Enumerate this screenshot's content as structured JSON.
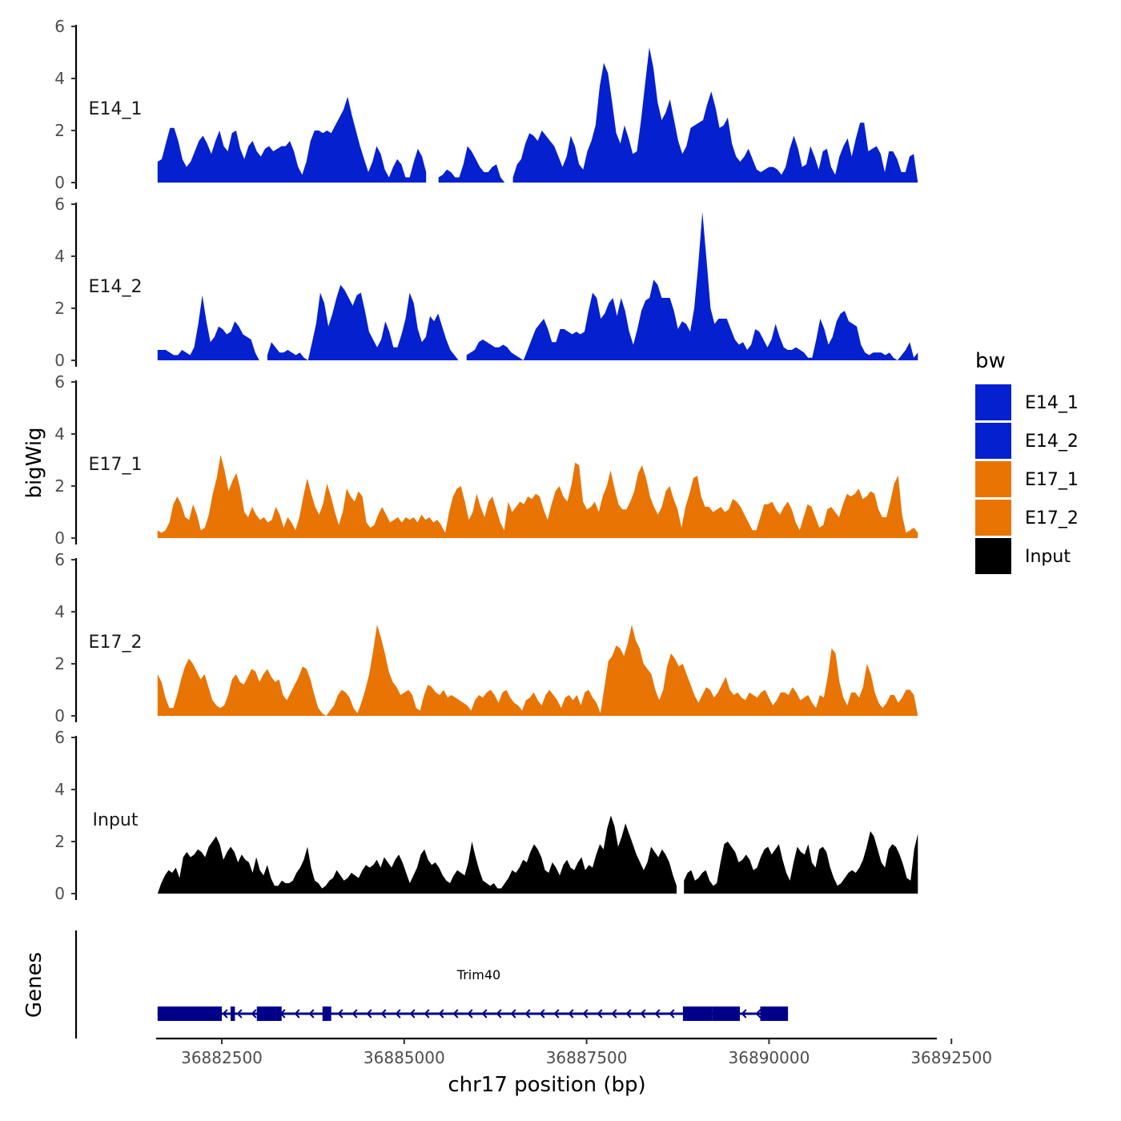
{
  "chart_data": {
    "type": "area",
    "ylabel": "bigWig",
    "xlabel": "chr17 position (bp)",
    "genes_label": "Genes",
    "ylim": [
      0,
      6
    ],
    "yticks": [
      "0",
      "2",
      "4",
      "6"
    ],
    "xlim": [
      36881600,
      36892300
    ],
    "xticks": [
      {
        "value": 36882500,
        "label": "36882500"
      },
      {
        "value": 36885000,
        "label": "36885000"
      },
      {
        "value": 36887500,
        "label": "36887500"
      },
      {
        "value": 36890000,
        "label": "36890000"
      },
      {
        "value": 36892500,
        "label": "36892500"
      }
    ],
    "data_range": [
      36881620,
      36892040
    ],
    "legend": {
      "title": "bw",
      "items": [
        {
          "label": "E14_1",
          "color": "#0420CF"
        },
        {
          "label": "E14_2",
          "color": "#0420CF"
        },
        {
          "label": "E17_1",
          "color": "#E87404"
        },
        {
          "label": "E17_2",
          "color": "#E87404"
        },
        {
          "label": "Input",
          "color": "#000000"
        }
      ]
    },
    "series": [
      {
        "name": "E14_1",
        "color": "#0420CF",
        "values": [
          0.8,
          0.9,
          1.5,
          2.1,
          2.1,
          1.6,
          0.9,
          0.6,
          0.8,
          1.2,
          1.6,
          1.8,
          1.5,
          1.1,
          1.6,
          2.0,
          1.4,
          1.2,
          1.9,
          2.0,
          1.3,
          0.9,
          1.4,
          1.6,
          1.2,
          1.0,
          1.3,
          1.4,
          1.2,
          1.3,
          1.4,
          1.4,
          1.6,
          1.2,
          0.6,
          0.3,
          0.8,
          1.6,
          2.0,
          2.0,
          1.9,
          2.0,
          1.9,
          2.2,
          2.5,
          2.8,
          3.3,
          2.6,
          2.0,
          1.4,
          0.9,
          0.4,
          0.8,
          1.4,
          1.1,
          0.5,
          0.2,
          0.6,
          0.9,
          0.7,
          0.2,
          0.2,
          0.8,
          1.3,
          1.0,
          0.4,
          null,
          null,
          0.2,
          0.3,
          0.5,
          0.4,
          0.2,
          0.2,
          0.7,
          1.4,
          1.2,
          0.9,
          0.6,
          0.4,
          0.4,
          0.6,
          0.7,
          0.2,
          0.0,
          null,
          0.2,
          0.7,
          0.9,
          1.5,
          1.9,
          1.8,
          1.6,
          2.0,
          1.8,
          1.6,
          1.4,
          1.0,
          0.6,
          1.0,
          1.8,
          1.4,
          0.7,
          0.5,
          1.2,
          1.6,
          2.2,
          3.7,
          4.6,
          4.2,
          3.1,
          1.9,
          1.5,
          2.2,
          1.7,
          1.1,
          1.2,
          2.4,
          3.8,
          5.2,
          4.4,
          3.1,
          2.4,
          2.7,
          3.2,
          2.4,
          1.6,
          1.1,
          1.4,
          2.1,
          2.2,
          2.3,
          2.4,
          3.0,
          3.5,
          2.9,
          2.1,
          2.2,
          2.5,
          1.5,
          1.0,
          0.8,
          1.0,
          1.3,
          0.9,
          0.5,
          0.4,
          0.5,
          0.6,
          0.6,
          0.5,
          0.3,
          0.6,
          1.3,
          1.8,
          1.3,
          0.6,
          0.7,
          1.4,
          1.0,
          0.5,
          1.2,
          1.3,
          0.6,
          0.3,
          1.0,
          1.4,
          1.7,
          1.0,
          1.7,
          2.3,
          2.3,
          1.2,
          1.3,
          1.4,
          1.1,
          0.4,
          1.2,
          1.2,
          0.9,
          0.4,
          0.4,
          1.0,
          1.1,
          0.0
        ]
      },
      {
        "name": "E14_2",
        "color": "#0420CF",
        "values": [
          0.4,
          0.4,
          0.4,
          0.3,
          0.2,
          0.2,
          0.4,
          0.3,
          0.2,
          0.5,
          1.4,
          2.5,
          1.5,
          0.7,
          0.9,
          1.3,
          1.2,
          1.0,
          1.1,
          1.5,
          1.3,
          1.0,
          0.9,
          0.8,
          0.3,
          0.0,
          null,
          0.2,
          0.7,
          0.5,
          0.3,
          0.3,
          0.4,
          0.3,
          0.2,
          0.3,
          0.1,
          0.0,
          0.7,
          1.4,
          2.6,
          2.2,
          1.3,
          1.8,
          2.4,
          2.9,
          2.7,
          2.4,
          2.1,
          2.5,
          2.6,
          1.9,
          1.1,
          0.8,
          0.5,
          0.8,
          1.5,
          1.1,
          0.5,
          0.5,
          1.0,
          1.6,
          2.6,
          2.2,
          1.2,
          0.7,
          0.9,
          1.7,
          1.5,
          1.8,
          1.3,
          0.8,
          0.4,
          0.2,
          0.0,
          null,
          0.2,
          0.3,
          0.4,
          0.7,
          0.8,
          0.7,
          0.6,
          0.5,
          0.5,
          0.6,
          0.5,
          0.3,
          0.2,
          0.1,
          0.0,
          0.4,
          0.8,
          1.2,
          1.4,
          1.6,
          1.2,
          0.7,
          0.7,
          1.2,
          1.2,
          1.1,
          1.0,
          1.1,
          1.0,
          1.1,
          1.9,
          2.6,
          2.4,
          1.6,
          1.8,
          2.2,
          2.4,
          1.7,
          2.4,
          1.9,
          1.1,
          0.6,
          1.2,
          1.9,
          2.3,
          2.4,
          3.1,
          2.9,
          2.4,
          2.4,
          2.4,
          1.9,
          1.2,
          1.5,
          1.4,
          1.1,
          2.0,
          3.7,
          5.7,
          3.9,
          2.0,
          1.4,
          1.6,
          1.6,
          1.6,
          1.2,
          0.8,
          0.6,
          0.7,
          0.4,
          0.6,
          1.2,
          1.1,
          0.8,
          0.5,
          0.8,
          1.4,
          0.9,
          0.5,
          0.4,
          0.4,
          0.5,
          0.4,
          0.3,
          0.1,
          0.1,
          0.8,
          1.6,
          1.2,
          0.6,
          0.9,
          1.5,
          1.8,
          1.9,
          1.5,
          1.4,
          1.3,
          0.6,
          0.3,
          0.2,
          0.3,
          0.3,
          0.3,
          0.2,
          0.3,
          0.1,
          0.0,
          0.2,
          0.4,
          0.7,
          0.1,
          0.3
        ]
      },
      {
        "name": "E17_1",
        "color": "#E87404",
        "values": [
          0.3,
          0.2,
          0.3,
          0.6,
          1.3,
          1.6,
          1.3,
          0.8,
          0.7,
          1.3,
          0.9,
          0.3,
          0.4,
          0.9,
          1.7,
          2.3,
          3.2,
          2.6,
          1.8,
          2.2,
          2.5,
          1.9,
          1.0,
          0.8,
          1.2,
          0.9,
          0.7,
          0.8,
          0.6,
          0.7,
          1.2,
          0.9,
          0.4,
          0.8,
          0.6,
          0.3,
          0.8,
          1.6,
          2.3,
          1.7,
          1.2,
          0.9,
          1.3,
          2.1,
          1.6,
          1.0,
          0.5,
          1.0,
          1.9,
          1.6,
          1.4,
          1.8,
          1.6,
          0.6,
          0.4,
          0.5,
          0.9,
          1.2,
          0.9,
          0.6,
          0.7,
          0.8,
          0.6,
          0.8,
          0.7,
          0.8,
          0.6,
          0.9,
          0.7,
          0.8,
          0.6,
          0.7,
          0.5,
          0.2,
          1.0,
          1.6,
          1.9,
          2.0,
          1.4,
          0.7,
          1.0,
          1.7,
          1.2,
          0.8,
          1.4,
          1.6,
          1.1,
          0.6,
          0.3,
          1.4,
          1.0,
          1.2,
          1.4,
          1.3,
          1.6,
          1.5,
          1.7,
          1.6,
          1.1,
          0.7,
          1.3,
          1.8,
          2.0,
          1.6,
          1.4,
          2.0,
          2.9,
          2.8,
          1.4,
          1.1,
          1.2,
          1.4,
          1.0,
          1.6,
          2.0,
          2.6,
          1.9,
          1.3,
          1.1,
          1.1,
          1.4,
          1.8,
          2.5,
          2.8,
          2.3,
          1.6,
          1.2,
          0.9,
          1.2,
          1.8,
          2.0,
          1.5,
          1.1,
          0.4,
          1.2,
          1.7,
          2.3,
          2.4,
          1.6,
          1.2,
          1.2,
          1.0,
          1.1,
          1.2,
          1.0,
          1.1,
          1.5,
          1.4,
          1.2,
          0.9,
          0.6,
          0.3,
          0.3,
          0.8,
          1.3,
          1.3,
          1.4,
          1.1,
          0.9,
          1.2,
          1.4,
          1.1,
          0.6,
          0.3,
          0.8,
          1.3,
          1.2,
          0.8,
          0.4,
          0.5,
          1.1,
          1.2,
          1.0,
          0.8,
          1.3,
          1.7,
          1.6,
          1.7,
          1.9,
          1.5,
          1.6,
          1.8,
          1.7,
          1.1,
          0.8,
          0.8,
          1.4,
          2.1,
          2.4,
          0.9,
          0.2,
          0.3,
          0.4,
          0.2
        ]
      },
      {
        "name": "E17_2",
        "color": "#E87404",
        "values": [
          1.6,
          1.3,
          0.7,
          0.3,
          0.3,
          0.8,
          1.4,
          1.9,
          2.2,
          2.0,
          1.7,
          1.4,
          1.6,
          1.1,
          0.6,
          0.4,
          0.3,
          0.4,
          0.8,
          1.4,
          1.6,
          1.3,
          1.2,
          1.5,
          1.8,
          1.7,
          1.3,
          1.6,
          1.8,
          1.5,
          1.3,
          1.4,
          0.8,
          0.6,
          0.9,
          1.2,
          1.5,
          1.9,
          1.8,
          1.4,
          0.8,
          0.3,
          0.1,
          0.0,
          0.2,
          0.4,
          0.8,
          1.0,
          0.9,
          0.7,
          0.3,
          0.1,
          0.5,
          1.0,
          1.6,
          2.5,
          3.5,
          3.0,
          2.4,
          1.7,
          1.3,
          1.1,
          0.8,
          0.9,
          1.0,
          0.8,
          0.3,
          0.2,
          0.8,
          1.2,
          1.1,
          0.9,
          0.8,
          1.0,
          0.7,
          0.8,
          0.7,
          0.6,
          0.5,
          0.4,
          0.2,
          0.6,
          0.8,
          0.7,
          0.9,
          1.0,
          0.8,
          0.5,
          0.9,
          1.0,
          0.7,
          0.5,
          0.4,
          0.2,
          0.6,
          0.7,
          0.9,
          0.6,
          0.4,
          0.8,
          1.0,
          0.8,
          0.6,
          0.3,
          0.7,
          0.8,
          0.6,
          0.8,
          0.4,
          0.9,
          1.0,
          0.7,
          0.5,
          0.1,
          1.1,
          2.1,
          2.3,
          2.7,
          2.6,
          2.3,
          2.8,
          3.5,
          2.9,
          2.6,
          2.0,
          1.8,
          1.6,
          1.0,
          0.6,
          1.0,
          1.9,
          2.4,
          2.2,
          1.9,
          2.0,
          1.6,
          1.2,
          0.8,
          0.5,
          0.8,
          1.1,
          1.0,
          0.7,
          0.9,
          1.2,
          1.5,
          1.0,
          0.8,
          0.9,
          0.7,
          0.6,
          0.9,
          0.8,
          0.7,
          0.9,
          1.0,
          0.7,
          0.4,
          0.6,
          0.9,
          0.9,
          0.8,
          1.1,
          0.9,
          0.6,
          0.7,
          0.8,
          0.5,
          0.3,
          0.8,
          0.7,
          1.5,
          2.6,
          2.4,
          1.3,
          0.7,
          0.4,
          0.9,
          0.9,
          0.7,
          1.1,
          2.0,
          1.6,
          0.9,
          0.5,
          0.3,
          0.5,
          0.8,
          0.8,
          0.5,
          0.7,
          1.0,
          1.0,
          0.8,
          0.0
        ]
      },
      {
        "name": "Input",
        "color": "#000000",
        "values": [
          0.0,
          0.4,
          0.7,
          0.9,
          0.8,
          1.0,
          0.6,
          1.4,
          1.6,
          1.4,
          1.5,
          1.7,
          1.6,
          1.4,
          1.8,
          2.0,
          2.2,
          1.9,
          1.3,
          1.6,
          1.8,
          1.6,
          1.2,
          1.5,
          1.3,
          1.2,
          0.8,
          1.4,
          0.9,
          0.7,
          1.1,
          0.6,
          0.3,
          0.3,
          0.5,
          0.4,
          0.4,
          0.5,
          0.8,
          1.0,
          1.3,
          1.8,
          1.0,
          0.5,
          0.4,
          0.2,
          0.3,
          0.5,
          0.6,
          0.9,
          0.7,
          0.5,
          0.6,
          0.8,
          0.7,
          0.6,
          0.9,
          1.1,
          1.0,
          1.1,
          1.3,
          1.0,
          1.4,
          1.2,
          1.0,
          1.3,
          1.5,
          1.2,
          0.8,
          0.4,
          0.7,
          1.0,
          1.5,
          1.7,
          1.3,
          1.1,
          1.2,
          1.0,
          0.7,
          0.5,
          0.4,
          0.7,
          0.9,
          0.8,
          0.7,
          1.2,
          2.0,
          1.4,
          0.9,
          0.5,
          0.4,
          0.3,
          0.4,
          0.2,
          0.2,
          0.4,
          0.6,
          0.9,
          0.8,
          1.0,
          1.3,
          1.2,
          1.6,
          1.9,
          1.7,
          1.4,
          0.9,
          0.8,
          1.2,
          1.0,
          0.7,
          1.1,
          1.3,
          1.0,
          0.9,
          1.2,
          1.4,
          0.9,
          1.1,
          1.0,
          1.5,
          1.9,
          1.7,
          2.5,
          3.0,
          2.6,
          1.8,
          2.2,
          2.7,
          2.3,
          1.9,
          1.5,
          1.2,
          0.9,
          1.2,
          1.8,
          1.6,
          1.4,
          1.7,
          1.5,
          1.2,
          0.7,
          0.3,
          null,
          0.5,
          0.8,
          0.9,
          0.5,
          0.6,
          0.8,
          0.9,
          0.5,
          0.3,
          0.4,
          1.2,
          1.9,
          2.0,
          1.8,
          1.6,
          1.2,
          1.3,
          1.5,
          1.3,
          0.9,
          1.0,
          1.4,
          1.7,
          1.8,
          1.5,
          1.7,
          1.9,
          1.3,
          0.8,
          0.5,
          1.2,
          1.8,
          1.6,
          1.5,
          1.9,
          1.2,
          1.0,
          1.7,
          1.8,
          1.6,
          1.0,
          0.6,
          0.3,
          0.4,
          0.6,
          0.8,
          0.9,
          0.8,
          1.0,
          1.3,
          1.8,
          2.4,
          2.2,
          1.7,
          1.2,
          1.0,
          1.7,
          1.9,
          1.8,
          1.5,
          1.1,
          0.6,
          0.5,
          1.7,
          2.3
        ]
      }
    ],
    "gene": {
      "name": "Trim40",
      "start": 36881620,
      "end": 36890260,
      "strand": "-",
      "color": "#00008B",
      "exons": [
        {
          "start": 36881620,
          "end": 36882500
        },
        {
          "start": 36882620,
          "end": 36882680
        },
        {
          "start": 36882980,
          "end": 36883240
        },
        {
          "start": 36883240,
          "end": 36883320
        },
        {
          "start": 36883880,
          "end": 36884000
        },
        {
          "start": 36888820,
          "end": 36889220
        },
        {
          "start": 36889220,
          "end": 36889600
        },
        {
          "start": 36889880,
          "end": 36890260
        }
      ]
    }
  }
}
